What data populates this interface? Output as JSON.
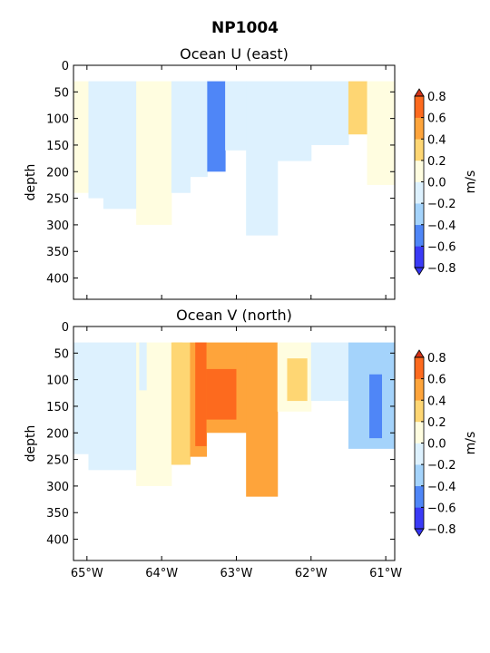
{
  "figure_title": "NP1004",
  "colors": {
    "levels": [
      "#3a3af6",
      "#4f86f7",
      "#a4d3fb",
      "#ddf1fe",
      "#fffde0",
      "#fed673",
      "#fea43b",
      "#fd6a1e",
      "#e6301b"
    ],
    "extend_low": "#3333ee",
    "extend_high": "#d43318"
  },
  "chart_data": [
    {
      "type": "heatmap",
      "title": "Ocean U (east)",
      "ylabel": "depth",
      "xlabel": "",
      "ylim": [
        440,
        0
      ],
      "xlim": [
        -65.18,
        -60.88
      ],
      "y_ticks": [
        "0",
        "50",
        "100",
        "150",
        "200",
        "250",
        "300",
        "350",
        "400"
      ],
      "x_ticks": [],
      "colorbar": {
        "label": "m/s",
        "ticks": [
          "0.8",
          "0.6",
          "0.4",
          "0.2",
          "0.0",
          "−0.2",
          "−0.4",
          "−0.6",
          "−0.8"
        ],
        "boundaries": [
          -0.8,
          -0.6,
          -0.4,
          -0.2,
          0.0,
          0.2,
          0.4,
          0.6,
          0.8
        ]
      },
      "data_top_depth": 30,
      "columns": [
        {
          "x": [
            -65.18,
            -64.98
          ],
          "bottom": 240,
          "value": 0.1
        },
        {
          "x": [
            -64.98,
            -64.78
          ],
          "bottom": 250,
          "value": -0.1
        },
        {
          "x": [
            -64.78,
            -64.34
          ],
          "bottom": 270,
          "value": -0.1
        },
        {
          "x": [
            -64.34,
            -63.87
          ],
          "bottom": 300,
          "value": 0.1
        },
        {
          "x": [
            -63.87,
            -63.62
          ],
          "bottom": 240,
          "value": -0.1
        },
        {
          "x": [
            -63.62,
            -63.39
          ],
          "bottom": 210,
          "value": -0.1
        },
        {
          "x": [
            -63.39,
            -63.15
          ],
          "bottom": 200,
          "value": -0.5
        },
        {
          "x": [
            -63.15,
            -62.87
          ],
          "bottom": 160,
          "value": -0.1
        },
        {
          "x": [
            -62.87,
            -62.45
          ],
          "bottom": 320,
          "value": -0.1
        },
        {
          "x": [
            -62.45,
            -62.0
          ],
          "bottom": 180,
          "value": -0.1
        },
        {
          "x": [
            -62.0,
            -61.5
          ],
          "bottom": 150,
          "value": -0.1
        },
        {
          "x": [
            -61.5,
            -61.25
          ],
          "bottom": 130,
          "value": 0.3
        },
        {
          "x": [
            -61.25,
            -60.88
          ],
          "bottom": 225,
          "value": 0.1
        }
      ]
    },
    {
      "type": "heatmap",
      "title": "Ocean V (north)",
      "ylabel": "depth",
      "xlabel": "",
      "ylim": [
        440,
        0
      ],
      "xlim": [
        -65.18,
        -60.88
      ],
      "y_ticks": [
        "0",
        "50",
        "100",
        "150",
        "200",
        "250",
        "300",
        "350",
        "400"
      ],
      "x_ticks": [
        "65°W",
        "64°W",
        "63°W",
        "62°W",
        "61°W"
      ],
      "x_tick_values": [
        -65,
        -64,
        -63,
        -62,
        -61
      ],
      "colorbar": {
        "label": "m/s",
        "ticks": [
          "0.8",
          "0.6",
          "0.4",
          "0.2",
          "0.0",
          "−0.2",
          "−0.4",
          "−0.6",
          "−0.8"
        ],
        "boundaries": [
          -0.8,
          -0.6,
          -0.4,
          -0.2,
          0.0,
          0.2,
          0.4,
          0.6,
          0.8
        ]
      },
      "data_top_depth": 30,
      "columns": [
        {
          "x": [
            -65.18,
            -64.98
          ],
          "bottom": 240,
          "value": -0.1
        },
        {
          "x": [
            -64.98,
            -64.34
          ],
          "bottom": 270,
          "value": -0.1
        },
        {
          "x": [
            -64.34,
            -63.87
          ],
          "bottom": 300,
          "value": 0.1
        },
        {
          "x": [
            -63.87,
            -63.62
          ],
          "bottom": 260,
          "value": 0.3
        },
        {
          "x": [
            -63.62,
            -63.4
          ],
          "bottom": 245,
          "value": 0.5
        },
        {
          "x": [
            -63.4,
            -62.87
          ],
          "bottom": 200,
          "value": 0.4
        },
        {
          "x": [
            -62.87,
            -62.45
          ],
          "bottom": 320,
          "value": 0.4
        },
        {
          "x": [
            -62.45,
            -62.0
          ],
          "bottom": 160,
          "value": 0.0
        },
        {
          "x": [
            -62.0,
            -61.5
          ],
          "bottom": 140,
          "value": -0.1
        },
        {
          "x": [
            -61.5,
            -60.88
          ],
          "bottom": 230,
          "value": -0.3
        }
      ],
      "patches": [
        {
          "x": [
            -63.55,
            -63.4
          ],
          "top": 30,
          "bottom": 225,
          "value": 0.7
        },
        {
          "x": [
            -63.4,
            -63.0
          ],
          "top": 80,
          "bottom": 175,
          "value": 0.7
        },
        {
          "x": [
            -62.32,
            -62.05
          ],
          "top": 60,
          "bottom": 140,
          "value": 0.3
        },
        {
          "x": [
            -63.85,
            -63.72
          ],
          "top": 30,
          "bottom": 260,
          "value": 0.3
        },
        {
          "x": [
            -64.3,
            -64.2
          ],
          "top": 30,
          "bottom": 120,
          "value": -0.1
        },
        {
          "x": [
            -61.22,
            -61.05
          ],
          "top": 90,
          "bottom": 210,
          "value": -0.5
        }
      ]
    }
  ]
}
